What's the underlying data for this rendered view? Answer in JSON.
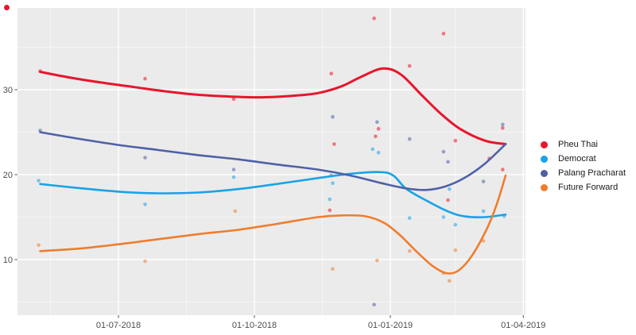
{
  "chart_data": {
    "type": "scatter",
    "title": "",
    "xlabel": "",
    "ylabel": "",
    "grid": "on",
    "legend_position": "right",
    "panel_bg": "#EBEBEB",
    "grid_major_color": "#FFFFFF",
    "grid_minor_color": "#F5F5F5",
    "axis_text_color": "#4D4D4D",
    "tick_mark_color": "#555555",
    "x_axis": {
      "ticks": [
        {
          "label": "01-07-2018",
          "date": "2018-07-01"
        },
        {
          "label": "01-10-2018",
          "date": "2018-10-01"
        },
        {
          "label": "01-01-2019",
          "date": "2019-01-01"
        },
        {
          "label": "01-04-2019",
          "date": "2019-04-01"
        }
      ],
      "minor_dates": [
        "2018-05-16",
        "2018-08-16",
        "2018-11-16",
        "2019-02-14"
      ]
    },
    "y_axis": {
      "ticks": [
        {
          "label": "30",
          "value": 30
        },
        {
          "label": "20",
          "value": 20
        },
        {
          "label": "10",
          "value": 10
        }
      ],
      "minor_values": [
        35,
        25,
        15,
        5
      ],
      "range": [
        3.4,
        39.6
      ]
    },
    "series": [
      {
        "name": "Pheu Thai",
        "color": "#E8152C",
        "points": [
          {
            "d": "2018-05-09",
            "v": 32.2
          },
          {
            "d": "2018-07-19",
            "v": 31.3
          },
          {
            "d": "2018-09-17",
            "v": 28.9
          },
          {
            "d": "2018-11-22",
            "v": 31.9
          },
          {
            "d": "2018-11-21",
            "v": 15.8
          },
          {
            "d": "2018-11-24",
            "v": 23.6
          },
          {
            "d": "2018-12-21",
            "v": 38.4
          },
          {
            "d": "2018-12-22",
            "v": 24.5
          },
          {
            "d": "2018-12-24",
            "v": 25.4
          },
          {
            "d": "2019-01-14",
            "v": 32.8
          },
          {
            "d": "2019-02-06",
            "v": 36.6
          },
          {
            "d": "2019-02-09",
            "v": 17.0
          },
          {
            "d": "2019-02-14",
            "v": 24.0
          },
          {
            "d": "2019-03-09",
            "v": 21.9
          },
          {
            "d": "2019-03-18",
            "v": 25.5
          },
          {
            "d": "2019-03-18",
            "v": 20.6
          }
        ],
        "line": [
          [
            "2018-05-09",
            32.1
          ],
          [
            "2018-05-30",
            31.4
          ],
          [
            "2018-06-21",
            30.8
          ],
          [
            "2018-07-12",
            30.3
          ],
          [
            "2018-08-02",
            29.8
          ],
          [
            "2018-08-24",
            29.4
          ],
          [
            "2018-09-14",
            29.2
          ],
          [
            "2018-10-06",
            29.1
          ],
          [
            "2018-10-28",
            29.3
          ],
          [
            "2018-11-13",
            29.6
          ],
          [
            "2018-11-29",
            30.4
          ],
          [
            "2018-12-12",
            31.5
          ],
          [
            "2018-12-27",
            32.5
          ],
          [
            "2019-01-08",
            31.8
          ],
          [
            "2019-01-22",
            29.4
          ],
          [
            "2019-02-04",
            27.2
          ],
          [
            "2019-02-17",
            25.4
          ],
          [
            "2019-03-06",
            24.0
          ],
          [
            "2019-03-20",
            23.6
          ]
        ]
      },
      {
        "name": "Democrat",
        "color": "#19A3E8",
        "points": [
          {
            "d": "2018-05-08",
            "v": 19.3
          },
          {
            "d": "2018-07-19",
            "v": 16.5
          },
          {
            "d": "2018-09-17",
            "v": 19.7
          },
          {
            "d": "2018-11-21",
            "v": 17.1
          },
          {
            "d": "2018-11-23",
            "v": 19.0
          },
          {
            "d": "2018-12-20",
            "v": 23.0
          },
          {
            "d": "2018-12-24",
            "v": 22.6
          },
          {
            "d": "2019-01-14",
            "v": 14.9
          },
          {
            "d": "2019-02-06",
            "v": 15.0
          },
          {
            "d": "2019-02-10",
            "v": 18.3
          },
          {
            "d": "2019-02-14",
            "v": 14.1
          },
          {
            "d": "2019-03-05",
            "v": 15.7
          },
          {
            "d": "2019-03-19",
            "v": 15.1
          }
        ],
        "line": [
          [
            "2018-05-09",
            18.9
          ],
          [
            "2018-06-05",
            18.4
          ],
          [
            "2018-07-01",
            18.0
          ],
          [
            "2018-07-28",
            17.8
          ],
          [
            "2018-08-24",
            17.9
          ],
          [
            "2018-09-20",
            18.3
          ],
          [
            "2018-10-16",
            18.9
          ],
          [
            "2018-11-13",
            19.6
          ],
          [
            "2018-12-05",
            20.1
          ],
          [
            "2018-12-25",
            20.3
          ],
          [
            "2019-01-03",
            19.9
          ],
          [
            "2019-01-12",
            18.3
          ],
          [
            "2019-01-27",
            16.8
          ],
          [
            "2019-02-10",
            15.6
          ],
          [
            "2019-02-20",
            15.1
          ],
          [
            "2019-03-06",
            15.0
          ],
          [
            "2019-03-20",
            15.3
          ]
        ]
      },
      {
        "name": "Palang Pracharat",
        "color": "#4E61A6",
        "points": [
          {
            "d": "2018-05-09",
            "v": 25.2
          },
          {
            "d": "2018-07-19",
            "v": 22.0
          },
          {
            "d": "2018-09-17",
            "v": 20.6
          },
          {
            "d": "2018-11-23",
            "v": 26.8
          },
          {
            "d": "2018-11-22",
            "v": 19.9
          },
          {
            "d": "2018-12-21",
            "v": 4.7
          },
          {
            "d": "2018-12-23",
            "v": 26.2
          },
          {
            "d": "2019-01-14",
            "v": 24.2
          },
          {
            "d": "2019-02-06",
            "v": 22.7
          },
          {
            "d": "2019-02-09",
            "v": 21.5
          },
          {
            "d": "2019-03-05",
            "v": 19.2
          },
          {
            "d": "2019-03-18",
            "v": 25.9
          }
        ],
        "line": [
          [
            "2018-05-09",
            25.0
          ],
          [
            "2018-06-05",
            24.2
          ],
          [
            "2018-07-01",
            23.5
          ],
          [
            "2018-07-28",
            22.9
          ],
          [
            "2018-08-24",
            22.3
          ],
          [
            "2018-09-20",
            21.8
          ],
          [
            "2018-10-16",
            21.2
          ],
          [
            "2018-11-13",
            20.6
          ],
          [
            "2018-12-05",
            19.9
          ],
          [
            "2018-12-26",
            19.0
          ],
          [
            "2019-01-11",
            18.4
          ],
          [
            "2019-01-25",
            18.2
          ],
          [
            "2019-02-07",
            18.6
          ],
          [
            "2019-02-20",
            19.6
          ],
          [
            "2019-03-06",
            21.3
          ],
          [
            "2019-03-20",
            23.6
          ]
        ]
      },
      {
        "name": "Future Forward",
        "color": "#EF7D2E",
        "points": [
          {
            "d": "2018-05-08",
            "v": 11.7
          },
          {
            "d": "2018-07-19",
            "v": 9.8
          },
          {
            "d": "2018-09-18",
            "v": 15.7
          },
          {
            "d": "2018-11-23",
            "v": 8.9
          },
          {
            "d": "2018-12-23",
            "v": 9.9
          },
          {
            "d": "2019-01-14",
            "v": 11.0
          },
          {
            "d": "2019-02-06",
            "v": 8.4
          },
          {
            "d": "2019-02-10",
            "v": 7.5
          },
          {
            "d": "2019-02-14",
            "v": 11.1
          },
          {
            "d": "2019-03-05",
            "v": 12.2
          }
        ],
        "line": [
          [
            "2018-05-09",
            11.0
          ],
          [
            "2018-06-05",
            11.3
          ],
          [
            "2018-07-01",
            11.8
          ],
          [
            "2018-07-28",
            12.4
          ],
          [
            "2018-08-24",
            13.0
          ],
          [
            "2018-09-20",
            13.5
          ],
          [
            "2018-10-16",
            14.2
          ],
          [
            "2018-11-13",
            15.0
          ],
          [
            "2018-11-29",
            15.2
          ],
          [
            "2018-12-15",
            15.1
          ],
          [
            "2018-12-28",
            14.3
          ],
          [
            "2019-01-08",
            12.8
          ],
          [
            "2019-01-19",
            10.9
          ],
          [
            "2019-01-30",
            9.2
          ],
          [
            "2019-02-08",
            8.4
          ],
          [
            "2019-02-16",
            8.7
          ],
          [
            "2019-02-25",
            10.4
          ],
          [
            "2019-03-07",
            13.5
          ],
          [
            "2019-03-14",
            16.5
          ],
          [
            "2019-03-20",
            19.9
          ]
        ]
      }
    ]
  },
  "legend": {
    "items": [
      {
        "label": "Pheu Thai",
        "color": "#E8152C"
      },
      {
        "label": "Democrat",
        "color": "#19A3E8"
      },
      {
        "label": "Palang Pracharat",
        "color": "#4E61A6"
      },
      {
        "label": "Future Forward",
        "color": "#EF7D2E"
      }
    ]
  },
  "misc": {
    "stray_dot_color": "#E8152C"
  }
}
